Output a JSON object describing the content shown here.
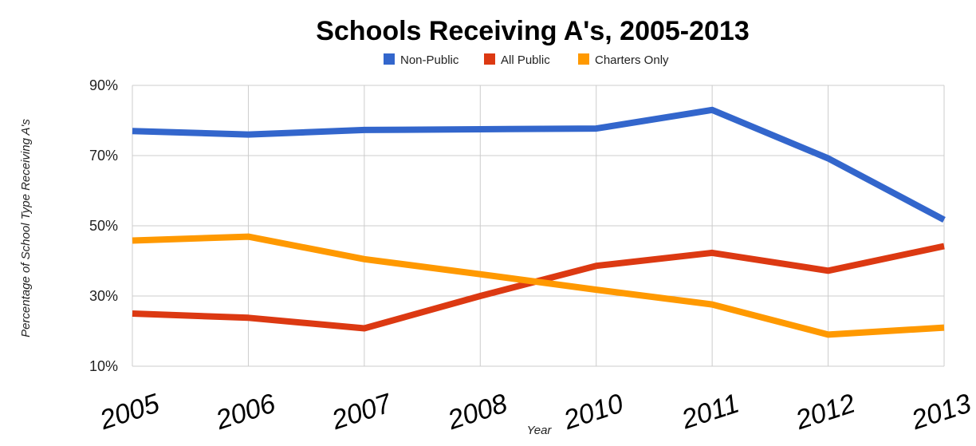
{
  "chart_data": {
    "type": "line",
    "title": "Schools Receiving A's, 2005-2013",
    "xlabel": "Year",
    "ylabel": "Percentage of School Type Receiving A's",
    "categories": [
      "2005",
      "2006",
      "2007",
      "2008",
      "2010",
      "2011",
      "2012",
      "2013"
    ],
    "y_ticks": [
      "10%",
      "30%",
      "50%",
      "70%",
      "90%"
    ],
    "ylim": [
      10,
      90
    ],
    "grid": true,
    "legend_position": "top",
    "series": [
      {
        "name": "Non-Public",
        "color": "#3366cc",
        "values": [
          77,
          76,
          77.3,
          77.5,
          77.7,
          83,
          69.2,
          51.7
        ]
      },
      {
        "name": "All Public",
        "color": "#dc3912",
        "values": [
          25,
          23.8,
          20.8,
          30,
          38.6,
          42.3,
          37.2,
          44.2
        ]
      },
      {
        "name": "Charters Only",
        "color": "#ff9900",
        "values": [
          45.8,
          46.9,
          40.5,
          36.2,
          31.8,
          27.6,
          19,
          21
        ]
      }
    ]
  }
}
